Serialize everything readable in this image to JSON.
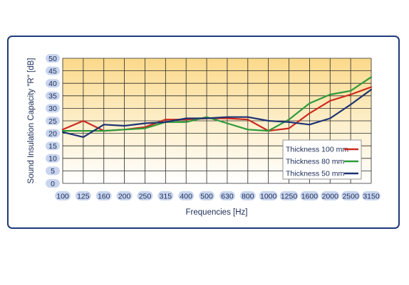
{
  "chart_data": {
    "type": "line",
    "xlabel": "Frequencies [Hz]",
    "ylabel": "Sound Insulation Capacity \"R\" [dB]",
    "categories": [
      "100",
      "125",
      "160",
      "200",
      "250",
      "315",
      "400",
      "500",
      "630",
      "800",
      "1000",
      "1250",
      "1600",
      "2000",
      "2500",
      "3150"
    ],
    "ylim": [
      0,
      50
    ],
    "yticks": [
      0,
      5,
      10,
      15,
      20,
      25,
      30,
      35,
      40,
      45,
      50
    ],
    "grid": true,
    "legend_position": "right",
    "series": [
      {
        "name": "Thickness 100 mm",
        "color": "#cc2a1e",
        "values": [
          21.5,
          25,
          21,
          21.5,
          22.5,
          25.5,
          25.5,
          26,
          26,
          25.5,
          21,
          22,
          28,
          33,
          35.5,
          38.5
        ]
      },
      {
        "name": "Thickness   80 mm",
        "color": "#2f9a3a",
        "values": [
          21,
          21,
          21,
          21.5,
          22,
          24.5,
          24.5,
          26.5,
          24,
          21.5,
          21,
          25.5,
          32,
          35.5,
          37,
          42.5
        ]
      },
      {
        "name": "Thickness   50 mm",
        "color": "#1d3272",
        "values": [
          20.5,
          18.5,
          23.5,
          23,
          24,
          24.5,
          26,
          26,
          26.5,
          26.5,
          25,
          24.5,
          23.5,
          26,
          31.5,
          37.5
        ]
      }
    ]
  }
}
